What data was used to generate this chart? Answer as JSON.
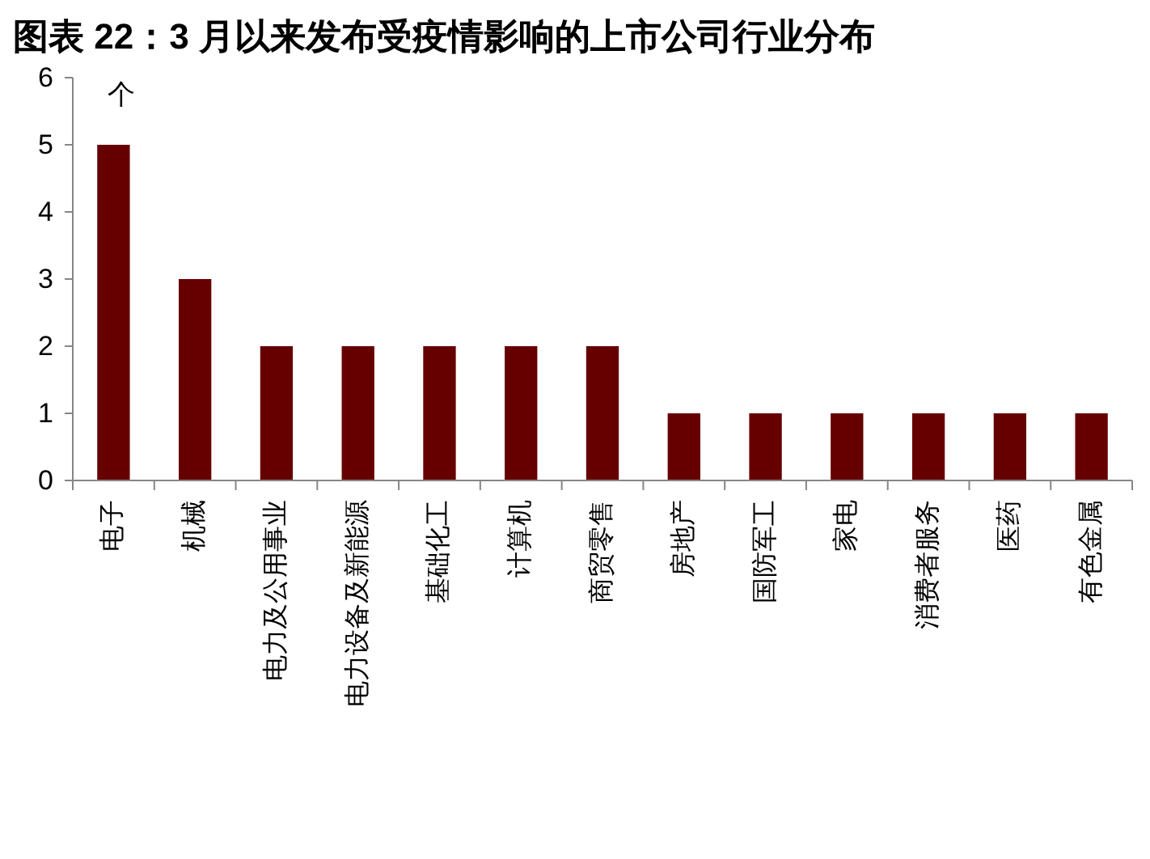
{
  "chart_data": {
    "type": "bar",
    "title": "图表 22：3 月以来发布受疫情影响的上市公司行业分布",
    "ylabel": "个",
    "categories": [
      "电子",
      "机械",
      "电力及公用事业",
      "电力设备及新能源",
      "基础化工",
      "计算机",
      "商贸零售",
      "房地产",
      "国防军工",
      "家电",
      "消费者服务",
      "医药",
      "有色金属"
    ],
    "values": [
      5,
      3,
      2,
      2,
      2,
      2,
      2,
      1,
      1,
      1,
      1,
      1,
      1
    ],
    "color": "#660000",
    "ylim": [
      0,
      6
    ],
    "yticks": [
      0,
      1,
      2,
      3,
      4,
      5,
      6
    ]
  }
}
